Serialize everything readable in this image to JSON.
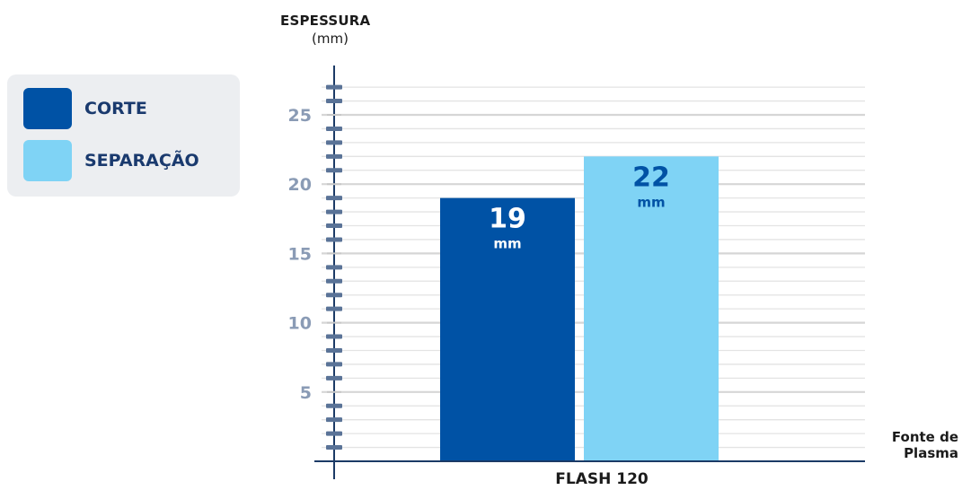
{
  "chart_data": {
    "type": "bar",
    "categories": [
      "FLASH 120"
    ],
    "series": [
      {
        "name": "CORTE",
        "values": [
          19
        ],
        "color": "#0052a5",
        "label_color": "#ffffff"
      },
      {
        "name": "SEPARAÇÃO",
        "values": [
          22
        ],
        "color": "#7fd3f5",
        "label_color": "#0052a5"
      }
    ],
    "value_unit": "mm",
    "ylabel": "ESPESSURA",
    "ylabel_unit": "(mm)",
    "xlabel_line1": "Fonte de",
    "xlabel_line2": "Plasma",
    "yticks": [
      5,
      10,
      15,
      20,
      25
    ],
    "ylim": [
      0,
      27.5
    ],
    "grid": true,
    "legend_position": "left"
  }
}
